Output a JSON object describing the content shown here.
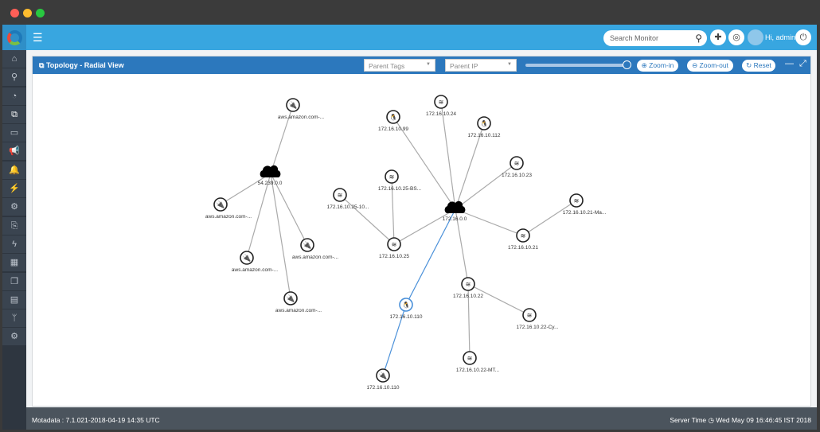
{
  "window": {
    "controls": {
      "close": "#ff5f57",
      "minimize": "#febc2e",
      "maximize": "#28c840"
    }
  },
  "header": {
    "menu_icon": "hamburger-icon",
    "search_placeholder": "Search Monitor",
    "greeting": "Hi, admin",
    "accent": "#38a6e0"
  },
  "sidebar": {
    "items": [
      {
        "icon": "home",
        "glyph": "⌂"
      },
      {
        "icon": "search",
        "glyph": "⚲"
      },
      {
        "icon": "dashboard",
        "glyph": "◔"
      },
      {
        "icon": "topology",
        "glyph": "⧉",
        "active": true
      },
      {
        "icon": "monitor",
        "glyph": "▭"
      },
      {
        "icon": "megaphone",
        "glyph": "📢"
      },
      {
        "icon": "bell",
        "glyph": "🔔"
      },
      {
        "icon": "plug",
        "glyph": "⚡"
      },
      {
        "icon": "gears",
        "glyph": "⚙"
      },
      {
        "icon": "code-file",
        "glyph": "⎘"
      },
      {
        "icon": "bolt",
        "glyph": "ϟ"
      },
      {
        "icon": "calendar",
        "glyph": "▦"
      },
      {
        "icon": "copy",
        "glyph": "❐"
      },
      {
        "icon": "document",
        "glyph": "▤"
      },
      {
        "icon": "branch",
        "glyph": "ᛘ"
      },
      {
        "icon": "settings",
        "glyph": "⚙"
      }
    ]
  },
  "panel": {
    "title": "Topology - Radial View",
    "parent_tags": "Parent Tags",
    "parent_ip": "Parent IP",
    "zoom_level": 1.0,
    "zoom_in": "Zoom-in",
    "zoom_out": "Zoom-out",
    "reset": "Reset"
  },
  "graph": {
    "nodes": [
      {
        "id": "c1",
        "type": "cloud",
        "label": "54.239.0.0"
      },
      {
        "id": "a1",
        "type": "plug",
        "label": "aws.amazon.com-..."
      },
      {
        "id": "a2",
        "type": "plug",
        "label": "aws.amazon.com-..."
      },
      {
        "id": "a3",
        "type": "plug",
        "label": "aws.amazon.com-..."
      },
      {
        "id": "a4",
        "type": "plug",
        "label": "aws.amazon.com-..."
      },
      {
        "id": "a5",
        "type": "plug",
        "label": "aws.amazon.com-..."
      },
      {
        "id": "c2",
        "type": "cloud",
        "label": "172.16.0.0"
      },
      {
        "id": "n99",
        "type": "linux",
        "label": "172.16.10.99"
      },
      {
        "id": "n24",
        "type": "server",
        "label": "172.16.10.24"
      },
      {
        "id": "n112",
        "type": "linux",
        "label": "172.16.10.112"
      },
      {
        "id": "n23",
        "type": "server",
        "label": "172.16.10.23"
      },
      {
        "id": "n21",
        "type": "server",
        "label": "172.16.10.21"
      },
      {
        "id": "n21m",
        "type": "server",
        "label": "172.16.10.21-Ma..."
      },
      {
        "id": "n25",
        "type": "server",
        "label": "172.16.10.25"
      },
      {
        "id": "n25b",
        "type": "server",
        "label": "172.16.10.25-BS..."
      },
      {
        "id": "n2510",
        "type": "server",
        "label": "172.16.10.25-10..."
      },
      {
        "id": "n22",
        "type": "server",
        "label": "172.16.10.22"
      },
      {
        "id": "n22c",
        "type": "server",
        "label": "172.16.10.22-Cy..."
      },
      {
        "id": "n22m",
        "type": "server",
        "label": "172.16.10.22-MT..."
      },
      {
        "id": "n110",
        "type": "linux",
        "label": "172.16.10.110",
        "selected": true
      },
      {
        "id": "n110p",
        "type": "plug",
        "label": "172.16.10.110"
      }
    ],
    "edges": [
      [
        "c1",
        "a1"
      ],
      [
        "c1",
        "a2"
      ],
      [
        "c1",
        "a3"
      ],
      [
        "c1",
        "a4"
      ],
      [
        "c1",
        "a5"
      ],
      [
        "c2",
        "n99"
      ],
      [
        "c2",
        "n24"
      ],
      [
        "c2",
        "n112"
      ],
      [
        "c2",
        "n23"
      ],
      [
        "c2",
        "n21"
      ],
      [
        "c2",
        "n25"
      ],
      [
        "c2",
        "n22"
      ],
      [
        "c2",
        "n110"
      ],
      [
        "n21",
        "n21m"
      ],
      [
        "n25",
        "n25b"
      ],
      [
        "n25",
        "n2510"
      ],
      [
        "n22",
        "n22c"
      ],
      [
        "n22",
        "n22m"
      ],
      [
        "n110",
        "n110p"
      ]
    ],
    "edge_color": "#aaaaaa",
    "selected_color": "#4a90d9"
  },
  "footer": {
    "version": "Motadata : 7.1.021-2018-04-19 14:35 UTC",
    "server_time": "Server Time ◷ Wed May 09 16:46:45 IST 2018"
  }
}
